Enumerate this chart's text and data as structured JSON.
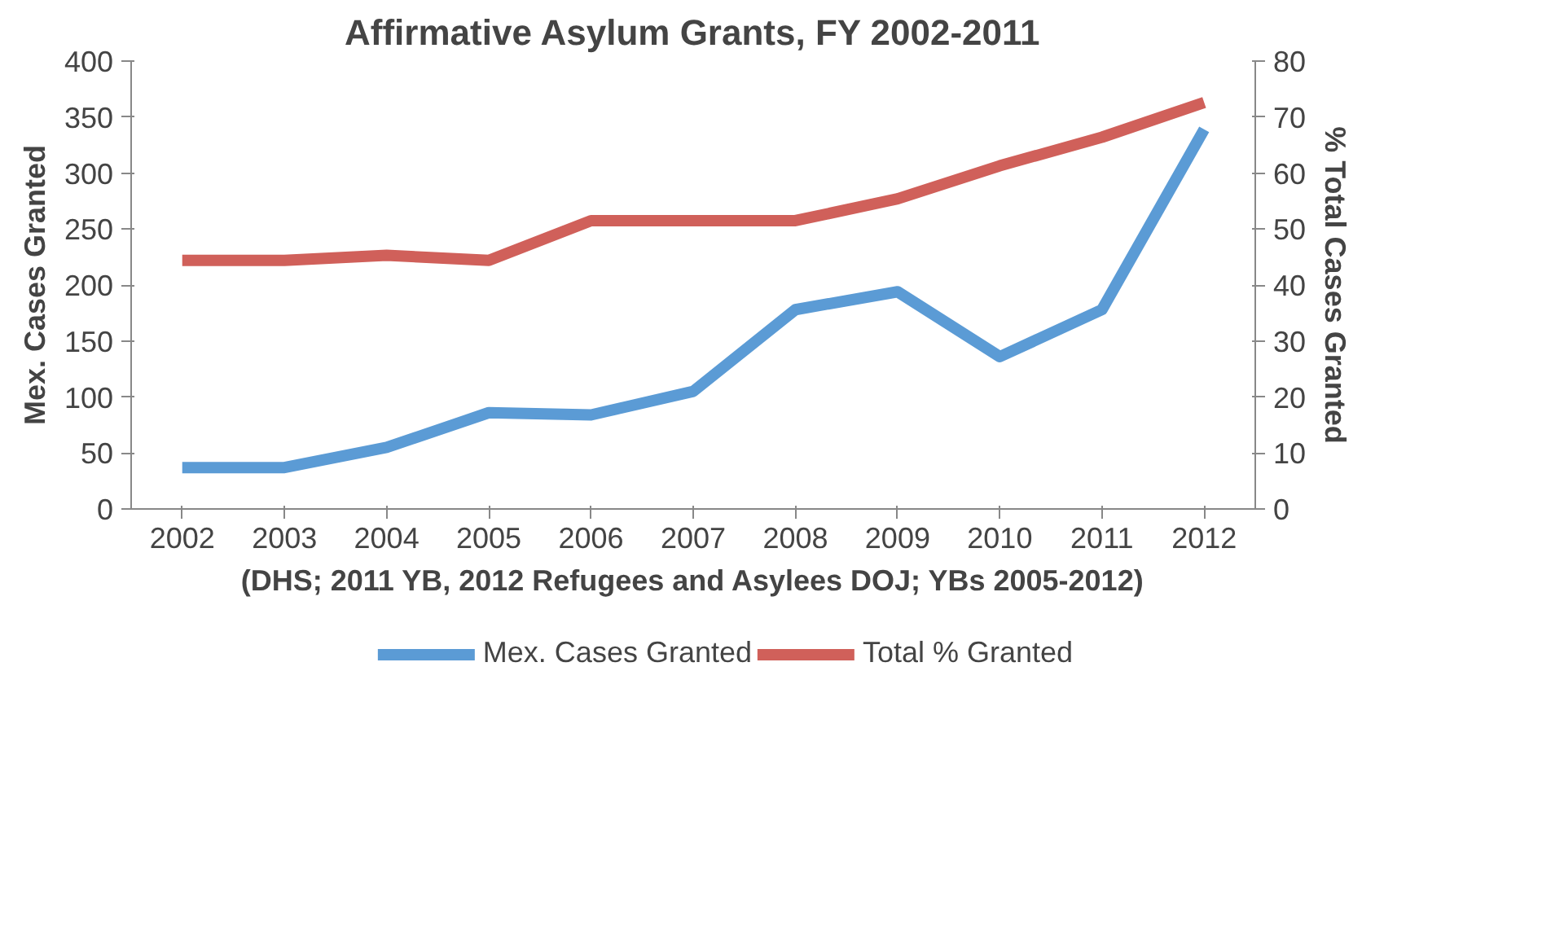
{
  "chart_data": {
    "type": "line",
    "title": "Affirmative Asylum Grants, FY 2002-2011",
    "categories": [
      "2002",
      "2003",
      "2004",
      "2005",
      "2006",
      "2007",
      "2008",
      "2009",
      "2010",
      "2011",
      "2012"
    ],
    "series": [
      {
        "name": "Mex. Cases Granted",
        "color": "#5b9bd5",
        "values": [
          37,
          37,
          55,
          86,
          84,
          105,
          178,
          194,
          136,
          178,
          339
        ]
      },
      {
        "name": "Total % Granted",
        "color": "#d0605a",
        "axis": "y2",
        "values": [
          44.4,
          44.4,
          45.3,
          44.4,
          51.5,
          51.5,
          51.5,
          55.4,
          61.3,
          66.4,
          72.6
        ]
      }
    ],
    "ylabel": "Mex. Cases Granted",
    "y2label": "% Total Cases Granted",
    "ylim": [
      0,
      400
    ],
    "yticks": [
      0,
      50,
      100,
      150,
      200,
      250,
      300,
      350,
      400
    ],
    "y2lim": [
      0,
      80
    ],
    "y2ticks": [
      0,
      10,
      20,
      30,
      40,
      50,
      60,
      70,
      80
    ],
    "annotations": [
      "(DHS; 2011 YB, 2012 Refugees and Asylees DOJ; YBs 2005-2012)"
    ],
    "legend": "bottom",
    "grid": false,
    "marker": "none",
    "line_style": "solid"
  }
}
